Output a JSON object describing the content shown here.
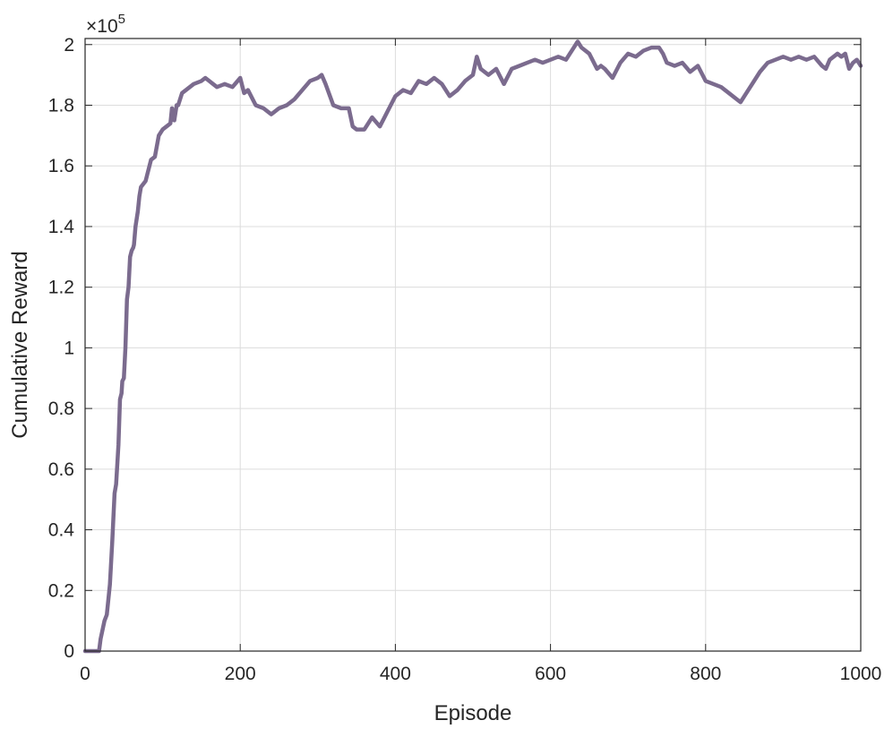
{
  "chart_data": {
    "type": "line",
    "xlabel": "Episode",
    "ylabel": "Cumulative Reward",
    "y_exponent_prefix": "×10",
    "y_exponent_power": "5",
    "xlim": [
      0,
      1000
    ],
    "ylim": [
      0,
      2.02
    ],
    "x_ticks": [
      0,
      200,
      400,
      600,
      800,
      1000
    ],
    "x_tick_labels": [
      "0",
      "200",
      "400",
      "600",
      "800",
      "1000"
    ],
    "y_ticks": [
      0,
      0.2,
      0.4,
      0.6,
      0.8,
      1,
      1.2,
      1.4,
      1.6,
      1.8,
      2
    ],
    "y_tick_labels": [
      "0",
      "0.2",
      "0.4",
      "0.6",
      "0.8",
      "1",
      "1.2",
      "1.4",
      "1.6",
      "1.8",
      "2"
    ],
    "grid": true,
    "line_color": "#7b6b8e",
    "series": [
      {
        "x": [
          0,
          10,
          18,
          20,
          25,
          28,
          32,
          35,
          38,
          40,
          43,
          45,
          47,
          48,
          50,
          52,
          54,
          56,
          58,
          60,
          62,
          63,
          65,
          68,
          70,
          72,
          75,
          78,
          80,
          85,
          90,
          95,
          100,
          105,
          110,
          112,
          115,
          118,
          120,
          125,
          130,
          140,
          150,
          155,
          160,
          165,
          170,
          180,
          190,
          200,
          205,
          210,
          220,
          230,
          240,
          250,
          260,
          270,
          280,
          290,
          300,
          305,
          310,
          320,
          330,
          340,
          345,
          350,
          360,
          370,
          380,
          390,
          400,
          410,
          420,
          430,
          440,
          450,
          460,
          470,
          480,
          490,
          500,
          505,
          510,
          515,
          520,
          530,
          540,
          550,
          560,
          570,
          580,
          590,
          600,
          610,
          620,
          630,
          635,
          640,
          650,
          660,
          665,
          670,
          680,
          690,
          700,
          710,
          720,
          730,
          740,
          745,
          750,
          760,
          770,
          780,
          790,
          800,
          810,
          820,
          830,
          840,
          845,
          850,
          860,
          870,
          880,
          890,
          900,
          910,
          920,
          930,
          940,
          950,
          955,
          960,
          965,
          970,
          975,
          980,
          985,
          990,
          995,
          1000
        ],
        "y": [
          0.0,
          0.0,
          0.0,
          0.04,
          0.1,
          0.12,
          0.22,
          0.36,
          0.52,
          0.55,
          0.68,
          0.83,
          0.85,
          0.89,
          0.9,
          1.0,
          1.16,
          1.2,
          1.3,
          1.32,
          1.33,
          1.34,
          1.4,
          1.45,
          1.5,
          1.53,
          1.54,
          1.55,
          1.57,
          1.62,
          1.63,
          1.7,
          1.72,
          1.73,
          1.74,
          1.79,
          1.75,
          1.8,
          1.8,
          1.84,
          1.85,
          1.87,
          1.88,
          1.89,
          1.88,
          1.87,
          1.86,
          1.87,
          1.86,
          1.89,
          1.84,
          1.85,
          1.8,
          1.79,
          1.77,
          1.79,
          1.8,
          1.82,
          1.85,
          1.88,
          1.89,
          1.9,
          1.87,
          1.8,
          1.79,
          1.79,
          1.73,
          1.72,
          1.72,
          1.76,
          1.73,
          1.78,
          1.83,
          1.85,
          1.84,
          1.88,
          1.87,
          1.89,
          1.87,
          1.83,
          1.85,
          1.88,
          1.9,
          1.96,
          1.92,
          1.91,
          1.9,
          1.92,
          1.87,
          1.92,
          1.93,
          1.94,
          1.95,
          1.94,
          1.95,
          1.96,
          1.95,
          1.99,
          2.01,
          1.99,
          1.97,
          1.92,
          1.93,
          1.92,
          1.89,
          1.94,
          1.97,
          1.96,
          1.98,
          1.99,
          1.99,
          1.97,
          1.94,
          1.93,
          1.94,
          1.91,
          1.93,
          1.88,
          1.87,
          1.86,
          1.84,
          1.82,
          1.81,
          1.83,
          1.87,
          1.91,
          1.94,
          1.95,
          1.96,
          1.95,
          1.96,
          1.95,
          1.96,
          1.93,
          1.92,
          1.95,
          1.96,
          1.97,
          1.96,
          1.97,
          1.92,
          1.94,
          1.95,
          1.93
        ]
      }
    ]
  }
}
